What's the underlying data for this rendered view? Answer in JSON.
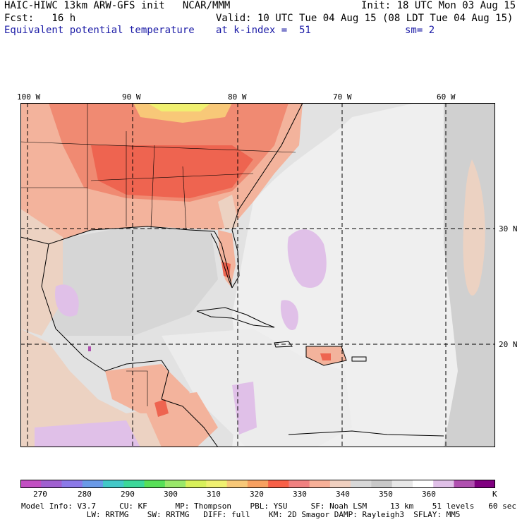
{
  "header": {
    "model_title": "HAIC-HIWC 13km ARW-GFS init   NCAR/MMM",
    "init": "Init: 18 UTC Mon 03 Aug 15",
    "fcst": "Fcst:   16 h",
    "valid": "Valid: 10 UTC Tue 04 Aug 15 (08 LDT Tue 04 Aug 15)",
    "field": "Equivalent potential temperature",
    "level": "at k-index =  51",
    "smoothing": "sm= 2"
  },
  "axes": {
    "lon_labels": [
      "100 W",
      "90 W",
      "80 W",
      "70 W",
      "60 W"
    ],
    "lat_labels": [
      "30 N",
      "20 N"
    ]
  },
  "colorbar": {
    "unit": "K",
    "labels": [
      "270",
      "280",
      "290",
      "300",
      "310",
      "320",
      "330",
      "340",
      "350",
      "360"
    ],
    "colors": [
      "#c24fc2",
      "#a060d0",
      "#8b79e8",
      "#6a9ae8",
      "#43c8c8",
      "#3cd89a",
      "#58e058",
      "#9ae86a",
      "#d8f05a",
      "#f0f070",
      "#f8c878",
      "#f8a060",
      "#f86048",
      "#f08080",
      "#f8b098",
      "#f0d0c0",
      "#d8d8d8",
      "#c8c8c8",
      "#e8e8e8",
      "#ffffff",
      "#e0c0e8",
      "#b050b0",
      "#800080"
    ]
  },
  "footer": {
    "line1": "Model Info: V3.7     CU: KF      MP: Thompson    PBL: YSU     SF: Noah LSM     13 km    51 levels   60 sec",
    "line2": "              LW: RRTMG    SW: RRTMG   DIFF: full    KM: 2D Smagor DAMP: Rayleigh3  SFLAY: MM5"
  }
}
